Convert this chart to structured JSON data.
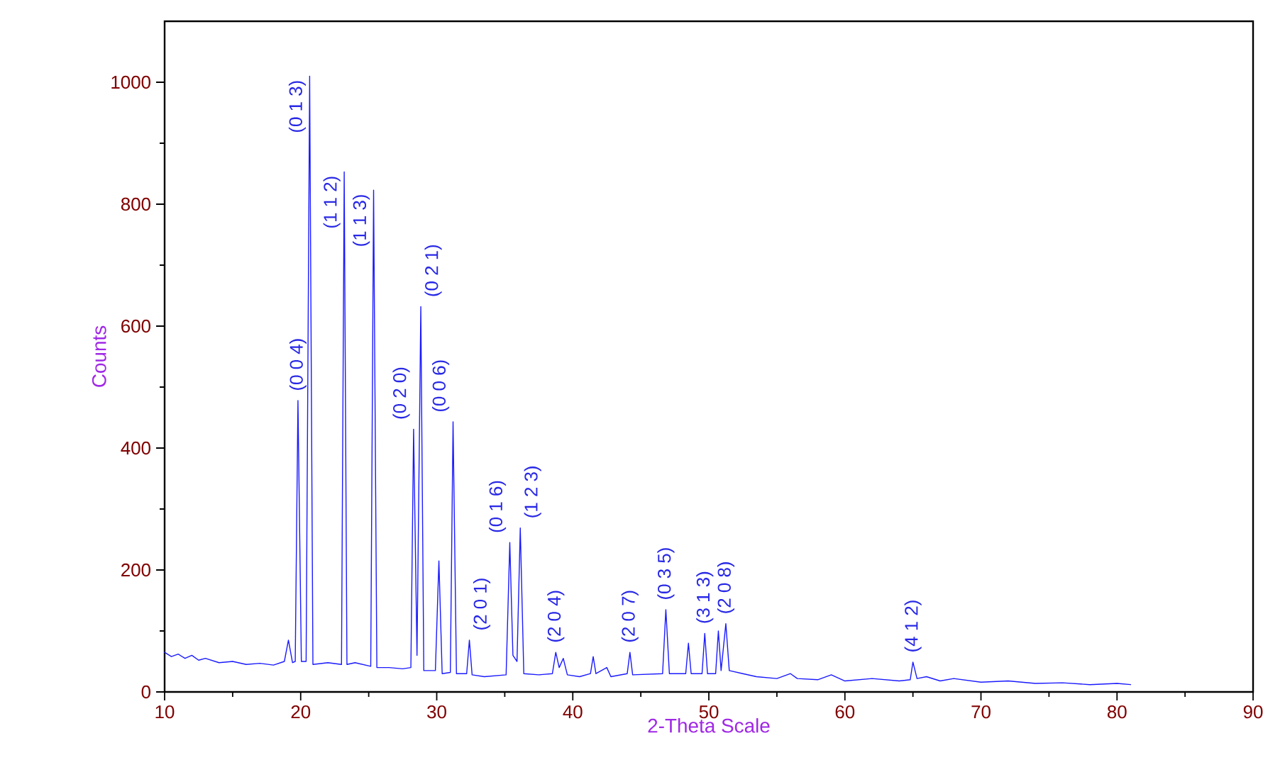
{
  "chart_data": {
    "type": "line",
    "xlabel": "2-Theta Scale",
    "ylabel": "Counts",
    "xlim": [
      10,
      90
    ],
    "ylim": [
      0,
      1100
    ],
    "xticks": [
      10,
      20,
      30,
      40,
      50,
      60,
      70,
      80,
      90
    ],
    "yticks": [
      0,
      200,
      400,
      600,
      800,
      1000
    ],
    "marker": "none",
    "line_style": "solid",
    "series": [
      {
        "color": "#1a1aff",
        "x": [
          10,
          10.5,
          11,
          11.5,
          12,
          12.5,
          13,
          14,
          15,
          16,
          17,
          18,
          18.8,
          19.1,
          19.4,
          19.6,
          19.8,
          20.05,
          20.4,
          20.66,
          20.9,
          22,
          23.0,
          23.2,
          23.4,
          24,
          25.15,
          25.36,
          25.6,
          26.5,
          27.5,
          28.1,
          28.3,
          28.55,
          28.83,
          29.05,
          29.9,
          30.16,
          30.4,
          31.0,
          31.2,
          31.45,
          32.2,
          32.4,
          32.6,
          33.5,
          35.1,
          35.37,
          35.6,
          35.9,
          36.14,
          36.4,
          37.5,
          38.5,
          38.75,
          39.0,
          39.3,
          39.6,
          40.5,
          41.3,
          41.5,
          41.7,
          42.5,
          42.8,
          44.0,
          44.2,
          44.4,
          46.6,
          46.84,
          47.1,
          48.3,
          48.5,
          48.7,
          49.5,
          49.7,
          49.9,
          50.5,
          50.7,
          50.9,
          51.25,
          51.5,
          52.5,
          53.5,
          55,
          56,
          56.5,
          58,
          59,
          60,
          62,
          64,
          64.8,
          65.0,
          65.3,
          66,
          67,
          68,
          70,
          72,
          74,
          76,
          78,
          80,
          81
        ],
        "values": [
          65,
          58,
          62,
          55,
          60,
          52,
          55,
          48,
          50,
          45,
          47,
          44,
          50,
          85,
          48,
          50,
          478,
          50,
          50,
          1010,
          45,
          48,
          45,
          853,
          45,
          48,
          42,
          823,
          40,
          40,
          38,
          40,
          431,
          60,
          632,
          35,
          35,
          215,
          30,
          32,
          443,
          30,
          30,
          85,
          28,
          25,
          28,
          245,
          60,
          50,
          269,
          30,
          28,
          30,
          65,
          40,
          55,
          28,
          25,
          30,
          58,
          30,
          40,
          25,
          30,
          65,
          28,
          30,
          135,
          30,
          30,
          80,
          30,
          30,
          96,
          30,
          30,
          100,
          35,
          112,
          35,
          30,
          25,
          22,
          30,
          22,
          20,
          28,
          18,
          22,
          18,
          20,
          49,
          22,
          25,
          18,
          22,
          16,
          18,
          14,
          15,
          12,
          14,
          12
        ]
      }
    ],
    "annotations": [
      {
        "text": "(0 0 4)",
        "x": 19.8,
        "y": 478
      },
      {
        "text": "(0 1 3)",
        "x": 20.66,
        "y": 1010
      },
      {
        "text": "(1 1 2)",
        "x": 23.2,
        "y": 853
      },
      {
        "text": "(1 1 3)",
        "x": 25.36,
        "y": 823
      },
      {
        "text": "(0 2 0)",
        "x": 28.3,
        "y": 431
      },
      {
        "text": "(0 2 1)",
        "x": 28.83,
        "y": 632
      },
      {
        "text": "(0 0 6)",
        "x": 31.2,
        "y": 443
      },
      {
        "text": "(2 0 1)",
        "x": 32.4,
        "y": 85
      },
      {
        "text": "(0 1 6)",
        "x": 35.37,
        "y": 245
      },
      {
        "text": "(1 2 3)",
        "x": 36.14,
        "y": 269
      },
      {
        "text": "(2 0 4)",
        "x": 38.75,
        "y": 65
      },
      {
        "text": "(2 0 7)",
        "x": 44.2,
        "y": 65
      },
      {
        "text": "(0 3 5)",
        "x": 46.84,
        "y": 135
      },
      {
        "text": "(3 1 3)",
        "x": 49.7,
        "y": 96
      },
      {
        "text": "(2 0 8)",
        "x": 51.25,
        "y": 112
      },
      {
        "text": "(4 1 2)",
        "x": 65.0,
        "y": 49
      }
    ]
  }
}
